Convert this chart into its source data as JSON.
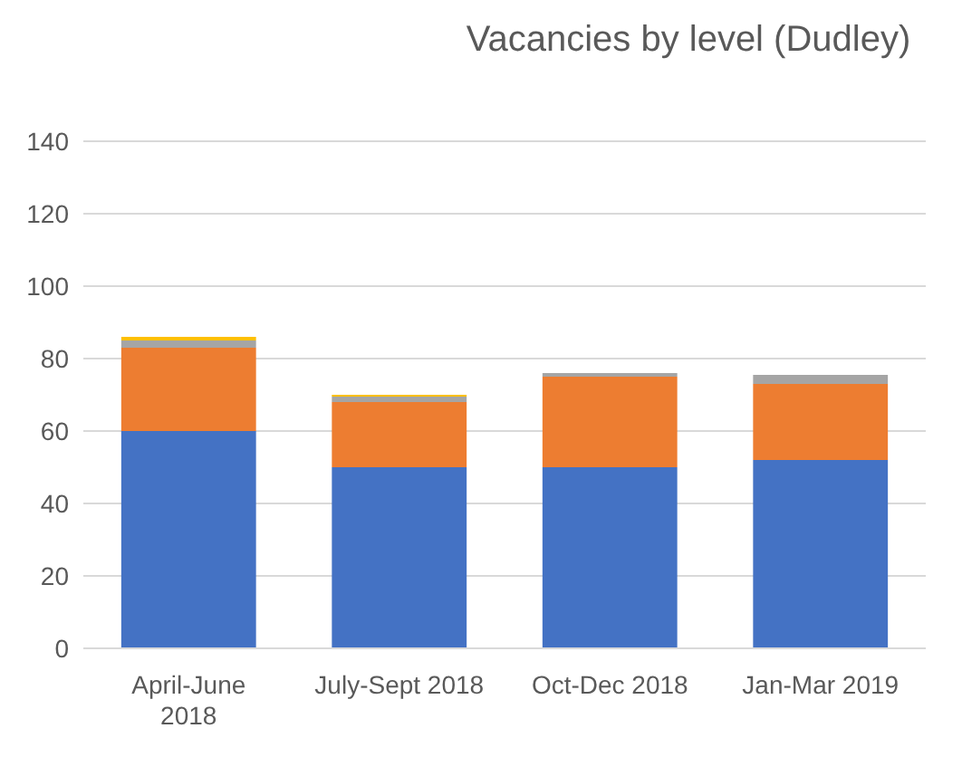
{
  "chart_data": {
    "type": "bar",
    "title": "Vacancies by level (Dudley)",
    "stacked": true,
    "categories": [
      "April-June 2018",
      "July-Sept 2018",
      "Oct-Dec 2018",
      "Jan-Mar 2019"
    ],
    "series": [
      {
        "color": "#4472c4",
        "values": [
          60,
          50,
          50,
          52
        ]
      },
      {
        "color": "#ed7d31",
        "values": [
          23,
          18,
          25,
          21
        ]
      },
      {
        "color": "#a5a5a5",
        "values": [
          2,
          1.5,
          1,
          2.5
        ]
      },
      {
        "color": "#ffc000",
        "values": [
          1,
          0.5,
          null,
          null
        ]
      }
    ],
    "ylim": [
      0,
      140
    ],
    "yticks": [
      0,
      20,
      40,
      60,
      80,
      100,
      120,
      140
    ],
    "grid": "y"
  }
}
